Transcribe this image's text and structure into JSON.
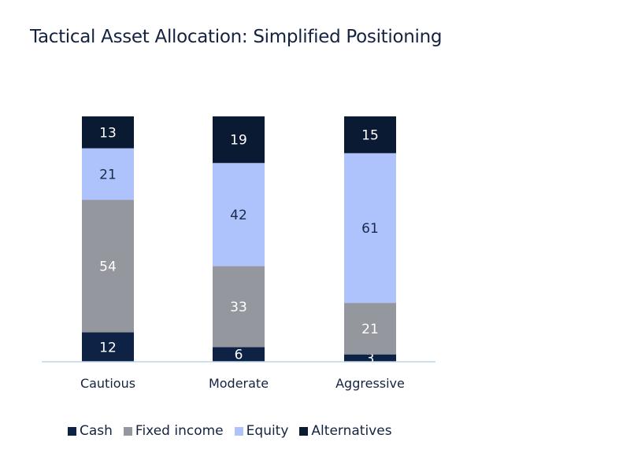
{
  "chart_data": {
    "type": "bar",
    "stacked": true,
    "title": "Tactical Asset Allocation: Simplified Positioning",
    "categories": [
      "Cautious",
      "Moderate",
      "Aggressive"
    ],
    "series": [
      {
        "name": "Cash",
        "values": [
          12,
          6,
          3
        ],
        "color": "#0e2246",
        "label_color": "#ffffff"
      },
      {
        "name": "Fixed income",
        "values": [
          54,
          33,
          21
        ],
        "color": "#95979f",
        "label_color": "#ffffff"
      },
      {
        "name": "Equity",
        "values": [
          21,
          42,
          61
        ],
        "color": "#aec3fb",
        "label_color": "#1b2a48"
      },
      {
        "name": "Alternatives",
        "values": [
          13,
          19,
          15
        ],
        "color": "#0b1a33",
        "label_color": "#ffffff"
      }
    ],
    "ylim": [
      0,
      100
    ],
    "legend_position": "bottom-left",
    "axis_color": "#bcd5ec",
    "grid": false
  }
}
